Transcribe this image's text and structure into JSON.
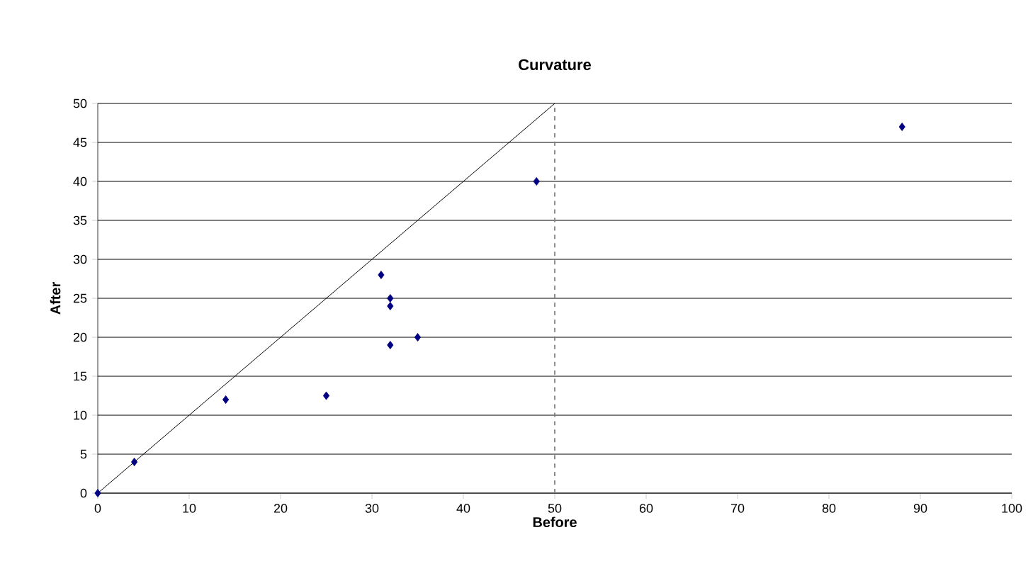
{
  "chart_data": {
    "type": "scatter",
    "title": "Curvature",
    "xlabel": "Before",
    "ylabel": "After",
    "series": [
      {
        "color": "#000080",
        "marker": "diamond",
        "x": [
          0,
          4,
          14,
          25,
          31,
          32,
          32,
          32,
          35,
          48,
          88
        ],
        "values": [
          0,
          4,
          12,
          12.5,
          28,
          25,
          24,
          19,
          20,
          40,
          47
        ]
      },
      {
        "type": "line",
        "color": "#000000",
        "marker": "none",
        "line_style": "solid",
        "x": [
          0,
          50
        ],
        "values": [
          0,
          50
        ]
      }
    ],
    "xlim": [
      0,
      100
    ],
    "ylim": [
      0,
      50
    ],
    "xticks": [
      0,
      10,
      20,
      30,
      40,
      50,
      60,
      70,
      80,
      90,
      100
    ],
    "yticks": [
      0,
      5,
      10,
      15,
      20,
      25,
      30,
      35,
      40,
      45,
      50
    ],
    "grid": "y",
    "ref_lines": [
      {
        "axis": "x",
        "value": 50,
        "color": "#808080",
        "line_style": "dashed"
      }
    ]
  }
}
